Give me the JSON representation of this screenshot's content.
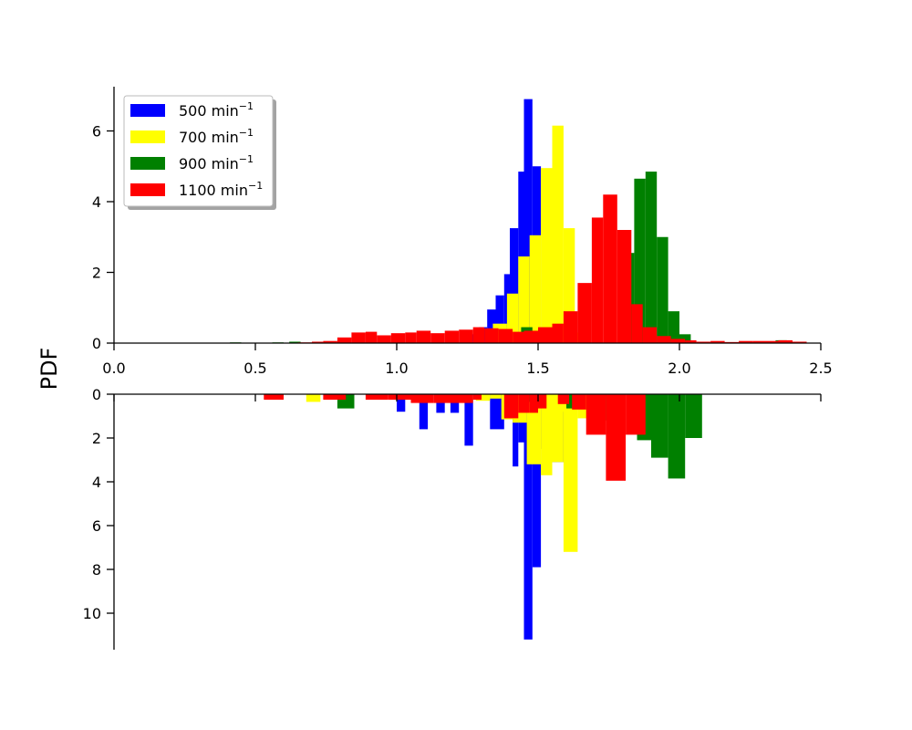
{
  "chart_data": {
    "type": "bar",
    "ylabel": "PDF",
    "grid": false,
    "legend_placement": "top-left",
    "legend": [
      {
        "name": "500 min",
        "sup": "−1",
        "color": "#0000ff"
      },
      {
        "name": "700 min",
        "sup": "−1",
        "color": "#ffff00"
      },
      {
        "name": "900 min",
        "sup": "−1",
        "color": "#008000"
      },
      {
        "name": "1100 min",
        "sup": "−1",
        "color": "#ff0000"
      }
    ],
    "top_panel": {
      "xlim": [
        0.0,
        2.5
      ],
      "ylim": [
        0,
        7.2
      ],
      "xticks": [
        "0.0",
        "0.5",
        "1.0",
        "1.5",
        "2.0",
        "2.5"
      ],
      "yticks": [
        "0",
        "2",
        "4",
        "6"
      ],
      "series": [
        {
          "name": "500 min⁻¹",
          "color": "#0000ff",
          "bins": [
            [
              1.25,
              1.29,
              0.25
            ],
            [
              1.29,
              1.32,
              0.45
            ],
            [
              1.32,
              1.35,
              0.95
            ],
            [
              1.35,
              1.38,
              1.35
            ],
            [
              1.38,
              1.4,
              1.95
            ],
            [
              1.4,
              1.43,
              3.25
            ],
            [
              1.43,
              1.45,
              4.85
            ],
            [
              1.45,
              1.48,
              6.9
            ],
            [
              1.48,
              1.51,
              5.0
            ]
          ]
        },
        {
          "name": "700 min⁻¹",
          "color": "#ffff00",
          "bins": [
            [
              1.34,
              1.39,
              0.55
            ],
            [
              1.39,
              1.43,
              1.4
            ],
            [
              1.43,
              1.47,
              2.45
            ],
            [
              1.47,
              1.51,
              3.05
            ],
            [
              1.51,
              1.55,
              4.95
            ],
            [
              1.55,
              1.59,
              6.15
            ],
            [
              1.59,
              1.63,
              3.25
            ],
            [
              1.63,
              1.67,
              0.3
            ]
          ]
        },
        {
          "name": "900 min⁻¹",
          "color": "#008000",
          "bins": [
            [
              0.41,
              0.45,
              0.02
            ],
            [
              0.56,
              0.6,
              0.02
            ],
            [
              0.62,
              0.66,
              0.04
            ],
            [
              1.44,
              1.48,
              0.45
            ],
            [
              1.8,
              1.84,
              2.55
            ],
            [
              1.84,
              1.88,
              4.65
            ],
            [
              1.88,
              1.92,
              4.85
            ],
            [
              1.92,
              1.96,
              3.0
            ],
            [
              1.96,
              2.0,
              0.9
            ],
            [
              2.0,
              2.04,
              0.25
            ],
            [
              2.3,
              2.34,
              0.02
            ],
            [
              2.34,
              2.38,
              0.08
            ]
          ]
        },
        {
          "name": "1100 min⁻¹",
          "color": "#ff0000",
          "bins": [
            [
              0.65,
              0.7,
              0.02
            ],
            [
              0.7,
              0.74,
              0.04
            ],
            [
              0.74,
              0.79,
              0.06
            ],
            [
              0.79,
              0.84,
              0.16
            ],
            [
              0.84,
              0.89,
              0.3
            ],
            [
              0.89,
              0.93,
              0.32
            ],
            [
              0.93,
              0.98,
              0.22
            ],
            [
              0.98,
              1.03,
              0.28
            ],
            [
              1.03,
              1.07,
              0.3
            ],
            [
              1.07,
              1.12,
              0.35
            ],
            [
              1.12,
              1.17,
              0.28
            ],
            [
              1.17,
              1.22,
              0.35
            ],
            [
              1.22,
              1.27,
              0.38
            ],
            [
              1.27,
              1.31,
              0.45
            ],
            [
              1.31,
              1.36,
              0.42
            ],
            [
              1.36,
              1.41,
              0.4
            ],
            [
              1.41,
              1.45,
              0.32
            ],
            [
              1.45,
              1.5,
              0.35
            ],
            [
              1.5,
              1.55,
              0.45
            ],
            [
              1.55,
              1.59,
              0.55
            ],
            [
              1.59,
              1.64,
              0.9
            ],
            [
              1.64,
              1.69,
              1.7
            ],
            [
              1.69,
              1.73,
              3.55
            ],
            [
              1.73,
              1.78,
              4.2
            ],
            [
              1.78,
              1.83,
              3.2
            ],
            [
              1.83,
              1.87,
              1.1
            ],
            [
              1.87,
              1.92,
              0.45
            ],
            [
              1.92,
              1.97,
              0.2
            ],
            [
              1.97,
              2.02,
              0.12
            ],
            [
              2.02,
              2.06,
              0.08
            ],
            [
              2.06,
              2.11,
              0.04
            ],
            [
              2.11,
              2.16,
              0.06
            ],
            [
              2.16,
              2.21,
              0.03
            ],
            [
              2.21,
              2.26,
              0.06
            ],
            [
              2.26,
              2.3,
              0.06
            ],
            [
              2.3,
              2.35,
              0.06
            ],
            [
              2.35,
              2.4,
              0.08
            ],
            [
              2.4,
              2.45,
              0.04
            ]
          ]
        }
      ]
    },
    "bottom_panel": {
      "xlim": [
        0.0,
        2.5
      ],
      "ylim": [
        0,
        11.6
      ],
      "inverted": true,
      "yticks": [
        "0",
        "2",
        "4",
        "6",
        "8",
        "10"
      ],
      "series": [
        {
          "name": "500 min⁻¹",
          "color": "#0000ff",
          "bins": [
            [
              1.0,
              1.03,
              0.8
            ],
            [
              1.08,
              1.11,
              1.6
            ],
            [
              1.14,
              1.17,
              0.85
            ],
            [
              1.19,
              1.22,
              0.85
            ],
            [
              1.24,
              1.27,
              2.35
            ],
            [
              1.33,
              1.38,
              1.6
            ],
            [
              1.38,
              1.41,
              0.85
            ],
            [
              1.41,
              1.43,
              3.3
            ],
            [
              1.43,
              1.45,
              2.2
            ],
            [
              1.45,
              1.48,
              11.2
            ],
            [
              1.48,
              1.51,
              7.9
            ],
            [
              1.51,
              1.54,
              2.5
            ],
            [
              1.54,
              1.57,
              3.1
            ],
            [
              1.57,
              1.6,
              3.1
            ]
          ]
        },
        {
          "name": "700 min⁻¹",
          "color": "#ffff00",
          "bins": [
            [
              0.68,
              0.73,
              0.35
            ],
            [
              1.22,
              1.27,
              0.3
            ],
            [
              1.28,
              1.33,
              0.3
            ],
            [
              1.33,
              1.37,
              0.2
            ],
            [
              1.37,
              1.41,
              1.15
            ],
            [
              1.41,
              1.46,
              1.3
            ],
            [
              1.46,
              1.51,
              3.2
            ],
            [
              1.51,
              1.55,
              3.7
            ],
            [
              1.55,
              1.59,
              3.1
            ],
            [
              1.59,
              1.64,
              7.2
            ],
            [
              1.64,
              1.68,
              1.1
            ],
            [
              1.55,
              1.6,
              0.8
            ]
          ]
        },
        {
          "name": "900 min⁻¹",
          "color": "#008000",
          "bins": [
            [
              0.79,
              0.85,
              0.65
            ],
            [
              1.44,
              1.48,
              0.35
            ],
            [
              1.6,
              1.63,
              0.65
            ],
            [
              1.85,
              1.91,
              2.1
            ],
            [
              1.9,
              1.96,
              2.9
            ],
            [
              1.96,
              2.02,
              3.85
            ],
            [
              2.02,
              2.08,
              2.0
            ],
            [
              1.68,
              1.74,
              1.2
            ]
          ]
        },
        {
          "name": "1100 min⁻¹",
          "color": "#ff0000",
          "bins": [
            [
              0.53,
              0.6,
              0.25
            ],
            [
              0.74,
              0.82,
              0.25
            ],
            [
              0.89,
              0.97,
              0.25
            ],
            [
              0.97,
              1.05,
              0.25
            ],
            [
              1.05,
              1.13,
              0.4
            ],
            [
              1.13,
              1.2,
              0.4
            ],
            [
              1.2,
              1.27,
              0.4
            ],
            [
              1.27,
              1.3,
              0.25
            ],
            [
              1.38,
              1.43,
              1.1
            ],
            [
              1.43,
              1.47,
              0.85
            ],
            [
              1.47,
              1.5,
              0.85
            ],
            [
              1.5,
              1.53,
              0.65
            ],
            [
              1.57,
              1.61,
              0.45
            ],
            [
              1.62,
              1.67,
              0.7
            ],
            [
              1.67,
              1.74,
              1.85
            ],
            [
              1.74,
              1.81,
              3.95
            ],
            [
              1.81,
              1.88,
              1.85
            ]
          ]
        }
      ]
    }
  }
}
